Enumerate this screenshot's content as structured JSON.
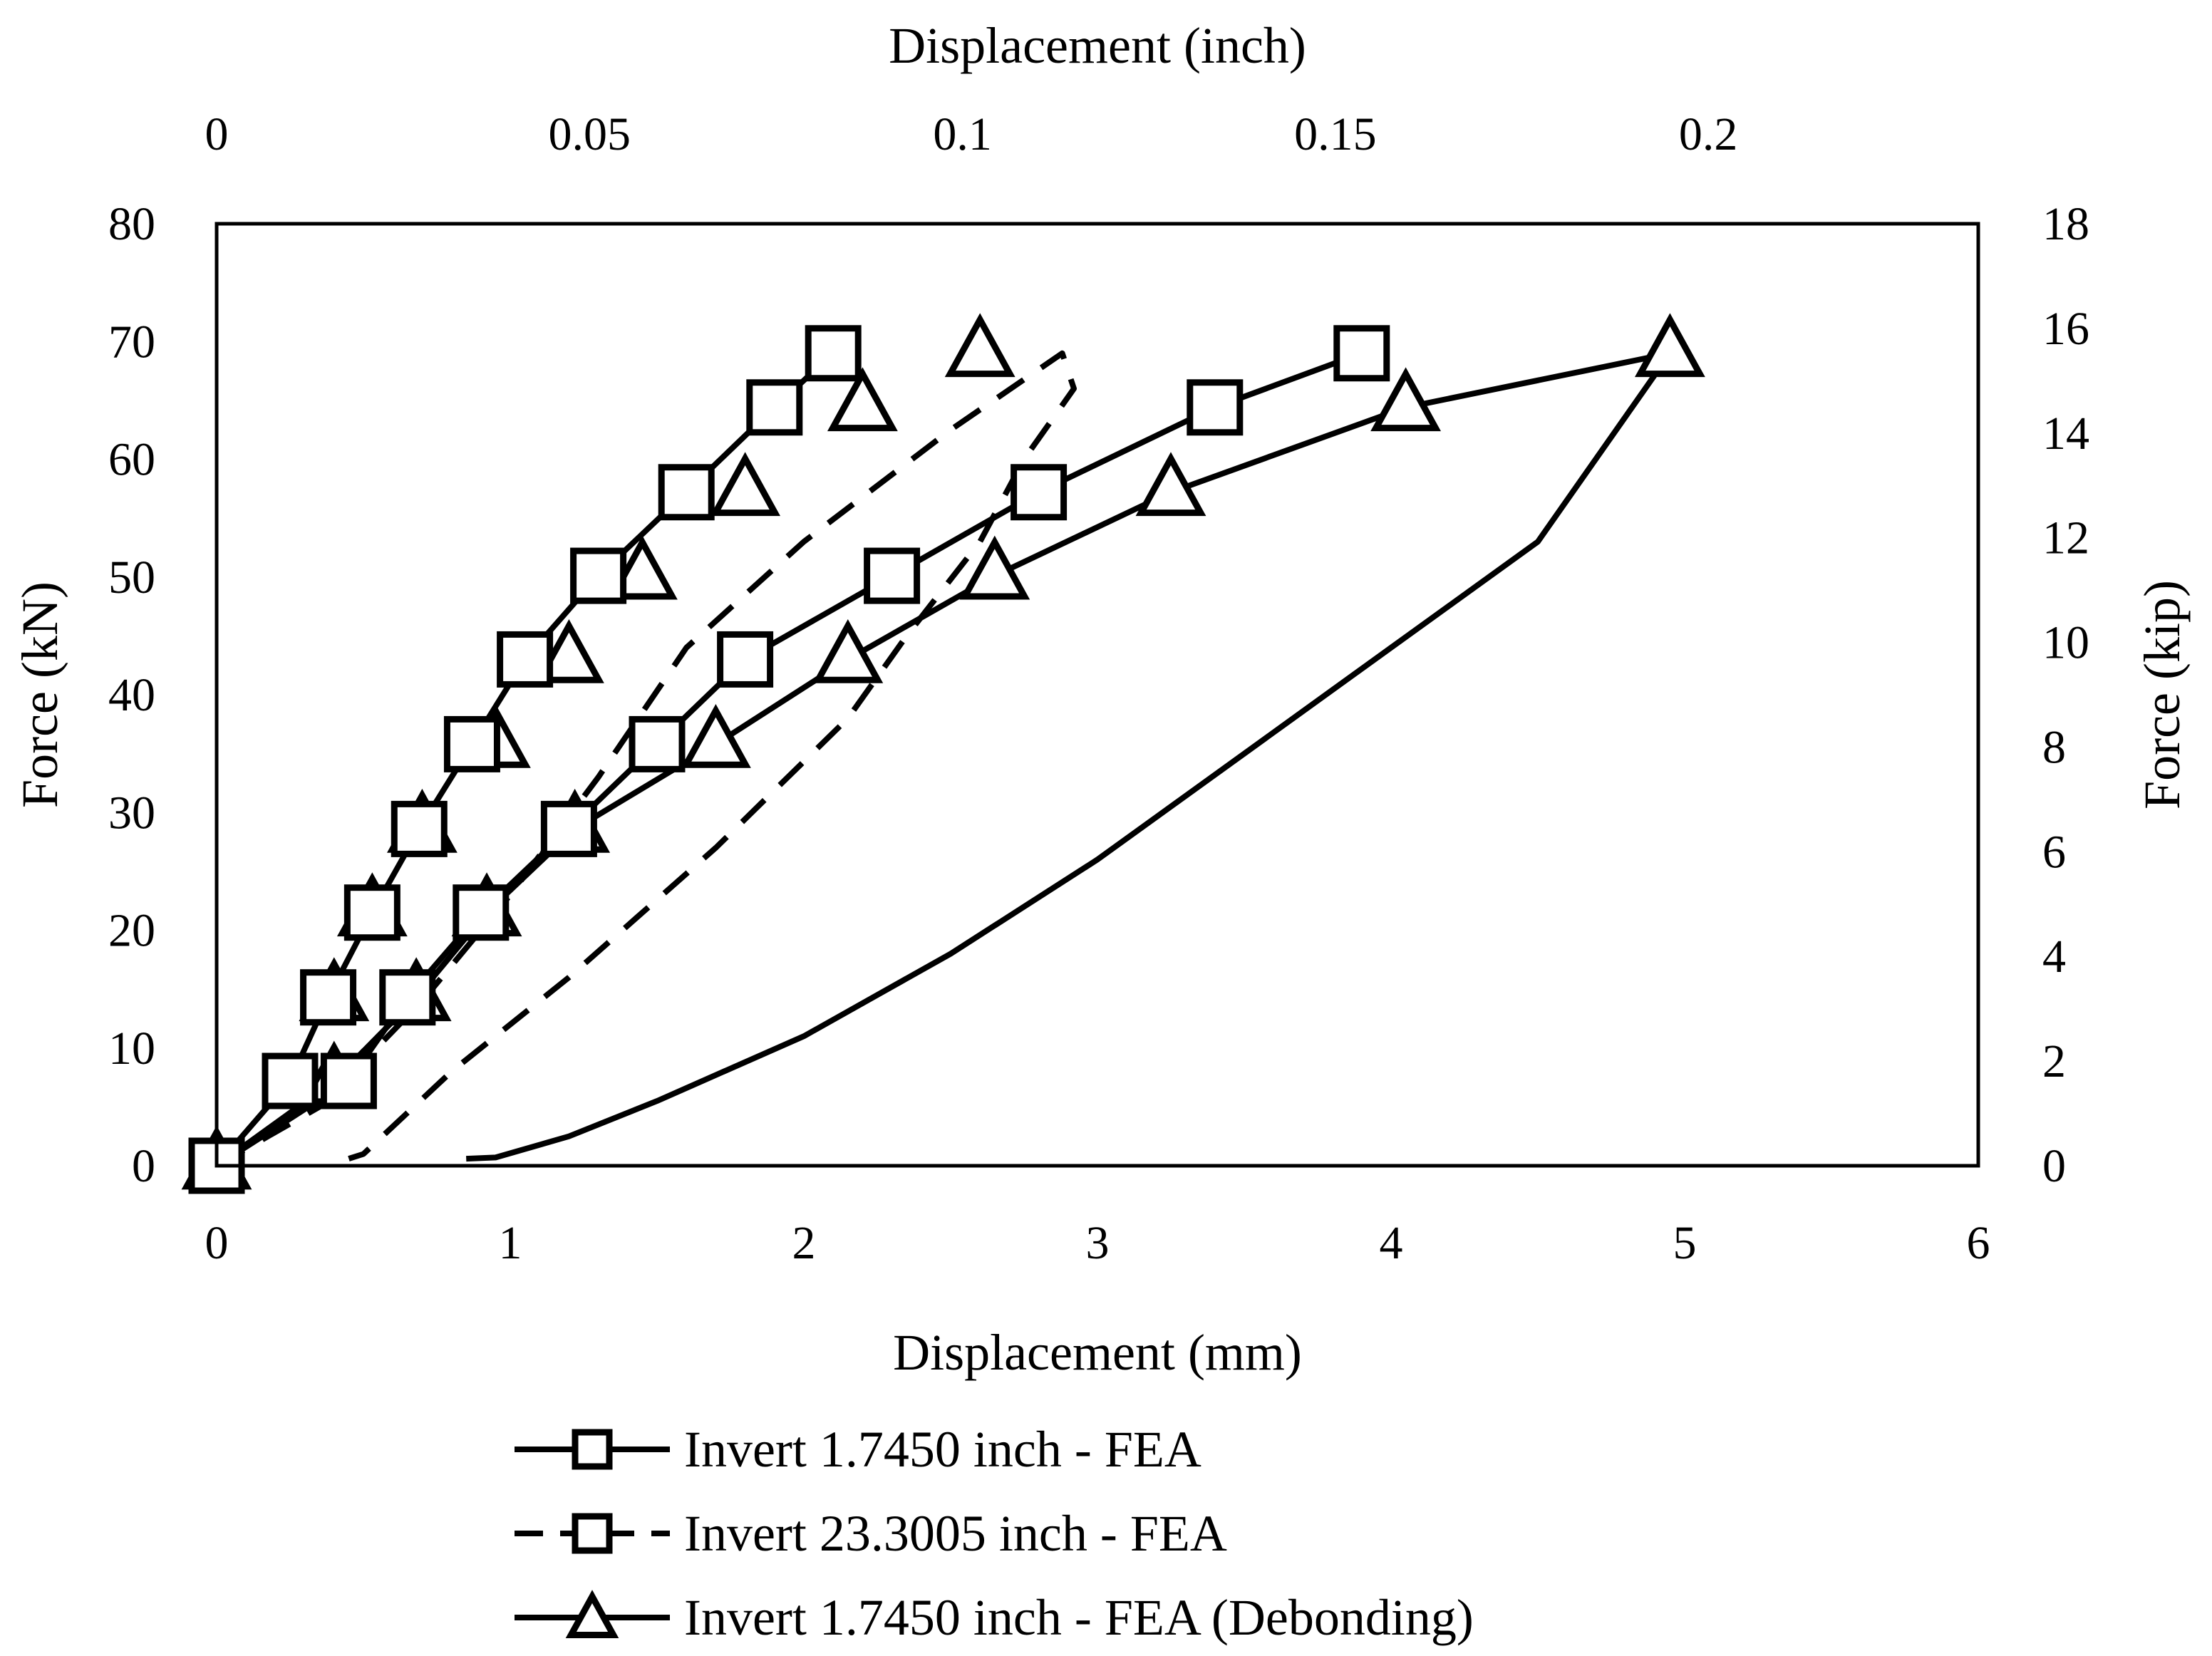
{
  "chart_data": {
    "type": "line",
    "title": "",
    "xlabel": "Displacement (mm)",
    "ylabel": "Force (kN)",
    "x2label": "Displacement (inch)",
    "y2label": "Force (kip)",
    "xlim": [
      0,
      6
    ],
    "ylim": [
      0,
      80
    ],
    "x2lim": [
      0,
      0.2362
    ],
    "y2lim": [
      0,
      18
    ],
    "grid": false,
    "xticks": [
      0,
      1,
      2,
      3,
      4,
      5,
      6
    ],
    "yticks": [
      0,
      10,
      20,
      30,
      40,
      50,
      60,
      70,
      80
    ],
    "x2ticks": [
      0,
      0.05,
      0.1,
      0.15,
      0.2
    ],
    "y2ticks": [
      0,
      2,
      4,
      6,
      8,
      10,
      12,
      14,
      16,
      18
    ],
    "xtick_labels": [
      "0",
      "1",
      "2",
      "3",
      "4",
      "5",
      "6"
    ],
    "ytick_labels": [
      "0",
      "10",
      "20",
      "30",
      "40",
      "50",
      "60",
      "70",
      "80"
    ],
    "x2tick_labels": [
      "0",
      "0.05",
      "0.1",
      "0.15",
      "0.2"
    ],
    "y2tick_labels": [
      "0",
      "2",
      "4",
      "6",
      "8",
      "10",
      "12",
      "14",
      "16",
      "18"
    ],
    "legend_position": "bottom",
    "series": [
      {
        "name": "Invert 1.7450 inch - FEA",
        "style": "solid",
        "marker": "square",
        "loading": [
          [
            0,
            0
          ],
          [
            0.45,
            7.2
          ],
          [
            0.65,
            14.3
          ],
          [
            0.9,
            21.5
          ],
          [
            1.2,
            28.6
          ],
          [
            1.5,
            35.8
          ],
          [
            1.8,
            43
          ],
          [
            2.3,
            50.1
          ],
          [
            2.8,
            57.2
          ],
          [
            3.4,
            64.4
          ],
          [
            3.9,
            69
          ]
        ],
        "unloading": [
          [
            2.1,
            69
          ],
          [
            1.9,
            64.4
          ],
          [
            1.6,
            57.2
          ],
          [
            1.3,
            50.1
          ],
          [
            1.05,
            43
          ],
          [
            0.87,
            35.8
          ],
          [
            0.69,
            28.6
          ],
          [
            0.53,
            21.5
          ],
          [
            0.38,
            14.3
          ],
          [
            0.25,
            7.2
          ],
          [
            0,
            0
          ]
        ]
      },
      {
        "name": "Invert 23.3005 inch - FEA",
        "style": "dashed",
        "marker": "square",
        "line": [
          [
            0,
            0
          ],
          [
            0.35,
            5
          ],
          [
            0.7,
            14
          ],
          [
            1.0,
            23
          ],
          [
            1.3,
            33
          ],
          [
            1.6,
            44
          ],
          [
            2.0,
            53
          ],
          [
            2.5,
            62.5
          ],
          [
            2.88,
            69
          ],
          [
            2.92,
            66
          ],
          [
            2.75,
            60
          ],
          [
            2.6,
            53
          ],
          [
            2.35,
            45
          ],
          [
            2.15,
            38
          ],
          [
            1.7,
            27
          ],
          [
            1.2,
            16
          ],
          [
            0.8,
            8
          ],
          [
            0.5,
            1
          ],
          [
            0.45,
            0.6
          ]
        ]
      },
      {
        "name": "Invert 1.7450 inch - FEA (Debonding)",
        "style": "solid",
        "marker": "triangle",
        "loading": [
          [
            0,
            0
          ],
          [
            0.4,
            7.2
          ],
          [
            0.68,
            14.3
          ],
          [
            0.92,
            21.5
          ],
          [
            1.22,
            28.6
          ],
          [
            1.7,
            35.8
          ],
          [
            2.15,
            43
          ],
          [
            2.65,
            50.1
          ],
          [
            3.25,
            57.2
          ],
          [
            4.05,
            64.4
          ],
          [
            4.95,
            69
          ]
        ],
        "unloading": [
          [
            4.95,
            69
          ],
          [
            4.5,
            53
          ],
          [
            4.0,
            44
          ],
          [
            3.5,
            35
          ],
          [
            3.0,
            26
          ],
          [
            2.5,
            18
          ],
          [
            2.0,
            11
          ],
          [
            1.5,
            5.5
          ],
          [
            1.2,
            2.5
          ],
          [
            0.95,
            0.7
          ],
          [
            0.85,
            0.6
          ]
        ],
        "marker_points": [
          [
            0,
            0
          ],
          [
            0.4,
            7.2
          ],
          [
            0.68,
            14.3
          ],
          [
            0.92,
            21.5
          ],
          [
            1.22,
            28.6
          ],
          [
            1.7,
            35.8
          ],
          [
            2.15,
            43
          ],
          [
            2.65,
            50.1
          ],
          [
            3.25,
            57.2
          ],
          [
            4.05,
            64.4
          ],
          [
            4.95,
            69
          ],
          [
            2.6,
            69
          ],
          [
            2.2,
            64.4
          ],
          [
            1.8,
            57.2
          ],
          [
            1.45,
            50.1
          ],
          [
            1.2,
            43
          ],
          [
            0.95,
            35.8
          ],
          [
            0.7,
            28.6
          ],
          [
            0.53,
            21.5
          ],
          [
            0.4,
            14.3
          ]
        ]
      }
    ]
  }
}
